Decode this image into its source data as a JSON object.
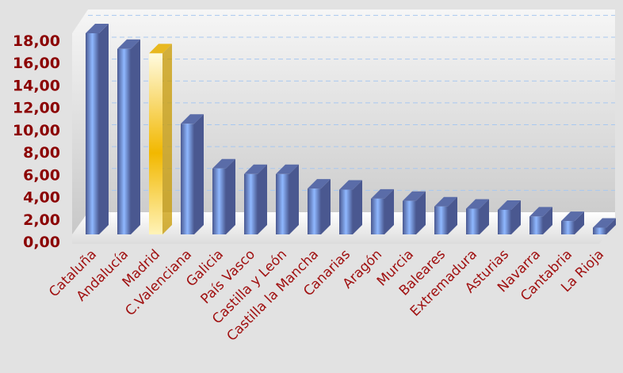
{
  "chart_data": {
    "type": "bar",
    "title": "",
    "xlabel": "",
    "ylabel": "",
    "ylim": [
      0,
      18
    ],
    "yticks": [
      "0,00",
      "2,00",
      "4,00",
      "6,00",
      "8,00",
      "10,00",
      "12,00",
      "14,00",
      "16,00",
      "18,00"
    ],
    "grid": true,
    "categories": [
      "Cataluña",
      "Andalucía",
      "Madrid",
      "C.Valenciana",
      "Galicia",
      "País Vasco",
      "Castilla y León",
      "Castilla la Mancha",
      "Canarias",
      "Aragón",
      "Murcia",
      "Baleares",
      "Extremadura",
      "Asturias",
      "Navarra",
      "Cantabria",
      "La Rioja"
    ],
    "values": [
      18.0,
      16.6,
      16.2,
      9.9,
      5.9,
      5.4,
      5.4,
      4.1,
      4.0,
      3.2,
      3.0,
      2.5,
      2.3,
      2.2,
      1.6,
      1.2,
      0.6
    ],
    "highlight_category": "Madrid",
    "colors": {
      "bar": "#8fb8ff",
      "bar_dark": "#4a5890",
      "highlight": "#ffd24a",
      "highlight_dark": "#c89a00",
      "axis_text": "#8b0000",
      "category_text": "#a01010",
      "grid": "#a8c8f0",
      "background": "#e2e2e2"
    }
  }
}
